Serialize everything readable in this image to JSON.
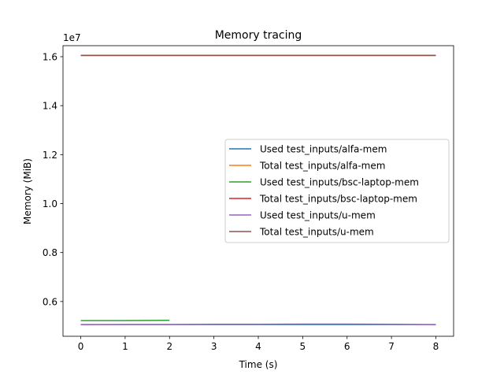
{
  "chart_data": {
    "type": "line",
    "title": "Memory tracing",
    "xlabel": "Time (s)",
    "ylabel": "Memory (MiB)",
    "y_offset_label": "1e7",
    "xlim": [
      -0.4,
      8.4
    ],
    "ylim": [
      4.58,
      16.45
    ],
    "y_scale_factor": 10000000,
    "x_ticks": [
      0,
      1,
      2,
      3,
      4,
      5,
      6,
      7,
      8
    ],
    "y_ticks": [
      0.6,
      0.8,
      1.0,
      1.2,
      1.4,
      1.6
    ],
    "y_tick_labels": [
      "0.6",
      "0.8",
      "1.0",
      "1.2",
      "1.4",
      "1.6"
    ],
    "x_tick_labels": [
      "0",
      "1",
      "2",
      "3",
      "4",
      "5",
      "6",
      "7",
      "8"
    ],
    "legend_position": "center-right",
    "grid": false,
    "series": [
      {
        "name": "Used test_inputs/alfa-mem",
        "color": "#1f77b4",
        "x": [
          0,
          1,
          2,
          3,
          4,
          5,
          6,
          7,
          8
        ],
        "y": [
          5.06,
          5.06,
          5.06,
          5.06,
          5.06,
          5.06,
          5.06,
          5.06,
          5.06
        ]
      },
      {
        "name": "Total test_inputs/alfa-mem",
        "color": "#ff7f0e",
        "x": [
          0,
          1,
          2,
          3,
          4,
          5,
          6,
          7,
          8
        ],
        "y": [
          16.05,
          16.05,
          16.05,
          16.05,
          16.05,
          16.05,
          16.05,
          16.05,
          16.05
        ]
      },
      {
        "name": "Used test_inputs/bsc-laptop-mem",
        "color": "#2ca02c",
        "x": [
          0,
          1,
          2
        ],
        "y": [
          5.22,
          5.22,
          5.23
        ]
      },
      {
        "name": "Total test_inputs/bsc-laptop-mem",
        "color": "#d62728",
        "x": [
          0,
          1,
          2,
          3,
          4,
          5,
          6,
          7,
          8
        ],
        "y": [
          16.05,
          16.05,
          16.05,
          16.05,
          16.05,
          16.05,
          16.05,
          16.05,
          16.05
        ]
      },
      {
        "name": "Used test_inputs/u-mem",
        "color": "#9467bd",
        "x": [
          0,
          1,
          2,
          3,
          4,
          5,
          6,
          7,
          8
        ],
        "y": [
          5.05,
          5.06,
          5.06,
          5.07,
          5.07,
          5.08,
          5.08,
          5.07,
          5.05
        ]
      },
      {
        "name": "Total test_inputs/u-mem",
        "color": "#8c564b",
        "x": [
          0,
          1,
          2,
          3,
          4,
          5,
          6,
          7,
          8
        ],
        "y": [
          16.05,
          16.05,
          16.05,
          16.05,
          16.05,
          16.05,
          16.05,
          16.05,
          16.05
        ]
      }
    ]
  }
}
